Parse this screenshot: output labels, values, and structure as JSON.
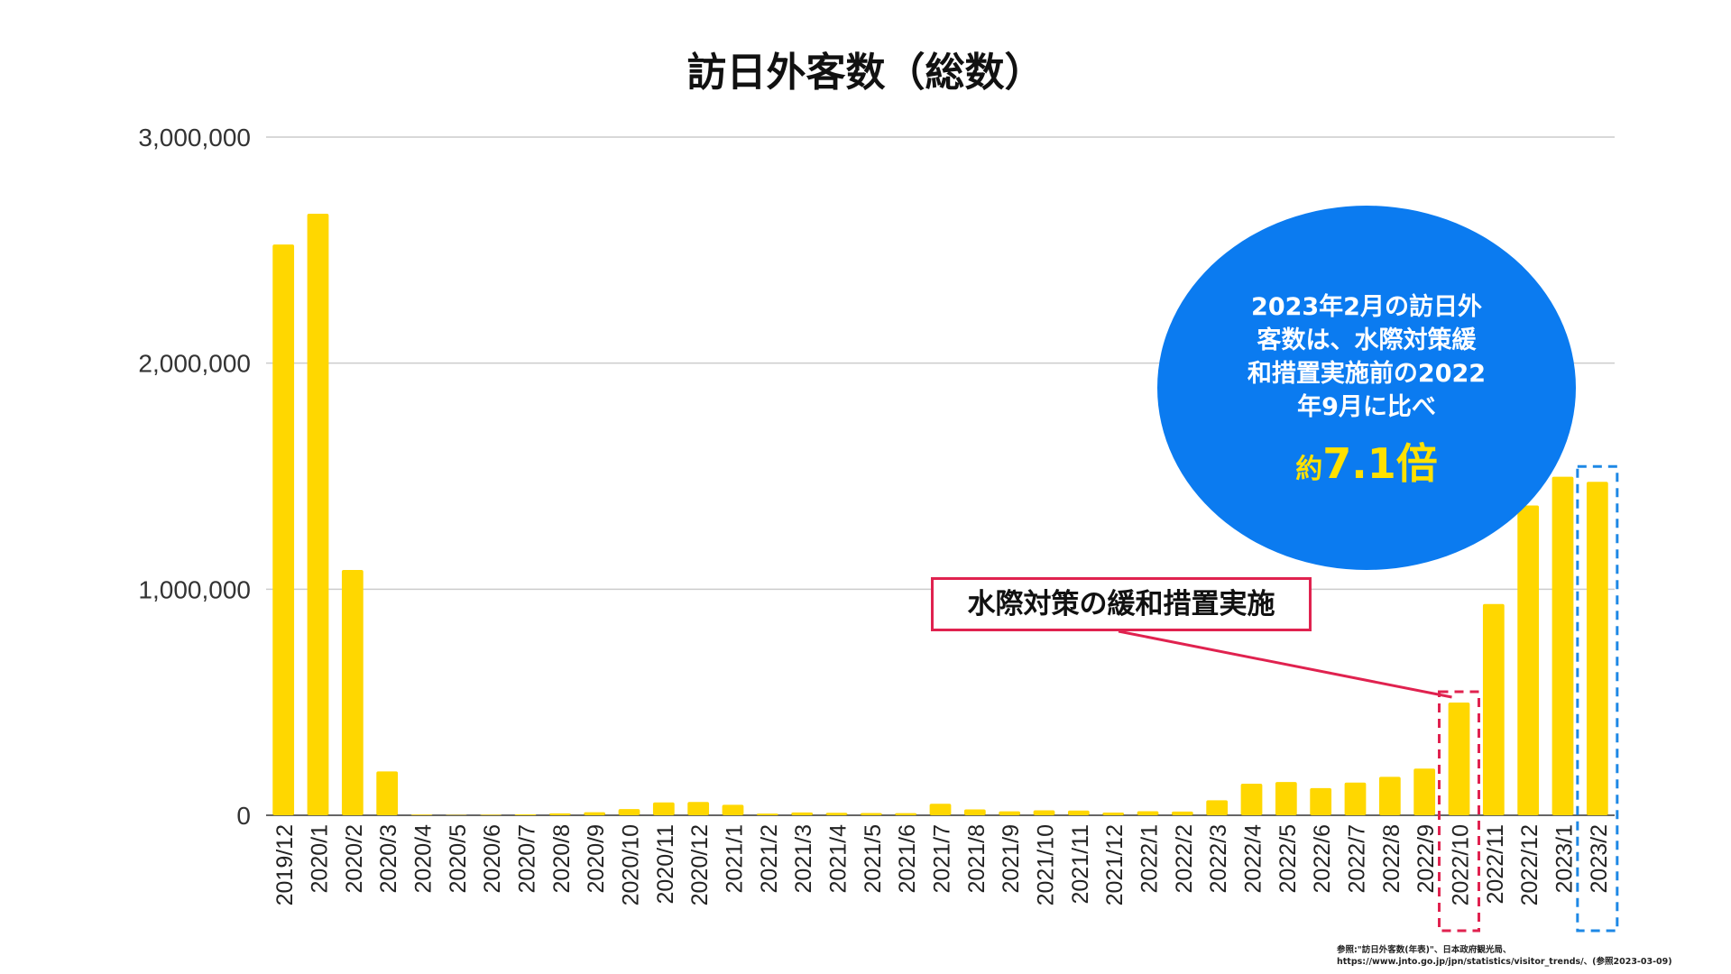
{
  "chart_data": {
    "type": "bar",
    "title": "訪日外客数（総数）",
    "xlabel": "",
    "ylabel": "",
    "ylim": [
      0,
      3000000
    ],
    "yticks": [
      0,
      1000000,
      2000000,
      3000000
    ],
    "ytick_labels": [
      "0",
      "1,000,000",
      "2,000,000",
      "3,000,000"
    ],
    "grid": true,
    "categories": [
      "2019/12",
      "2020/1",
      "2020/2",
      "2020/3",
      "2020/4",
      "2020/5",
      "2020/6",
      "2020/7",
      "2020/8",
      "2020/9",
      "2020/10",
      "2020/11",
      "2020/12",
      "2021/1",
      "2021/2",
      "2021/3",
      "2021/4",
      "2021/5",
      "2021/6",
      "2021/7",
      "2021/8",
      "2021/9",
      "2021/10",
      "2021/11",
      "2021/12",
      "2022/1",
      "2022/2",
      "2022/3",
      "2022/4",
      "2022/5",
      "2022/6",
      "2022/7",
      "2022/8",
      "2022/9",
      "2022/10",
      "2022/11",
      "2022/12",
      "2023/1",
      "2023/2"
    ],
    "values": [
      2525000,
      2661000,
      1085000,
      194000,
      2900,
      1700,
      2600,
      3800,
      8700,
      13700,
      27400,
      56700,
      58700,
      46500,
      7400,
      12300,
      10900,
      10000,
      9300,
      51100,
      25900,
      17700,
      22100,
      20700,
      12100,
      17800,
      16700,
      66100,
      139500,
      147000,
      120400,
      144500,
      169900,
      206600,
      498600,
      934500,
      1370100,
      1497300,
      1475300
    ]
  },
  "colors": {
    "bar": "#ffd700",
    "bubble": "#0b7bf0",
    "bubble_text": "#ffffff",
    "emphasis": "#ffe100",
    "callout_border": "#e0224f",
    "highlight_red": "#e0224f",
    "highlight_blue": "#1e88e5",
    "grid": "#cccccc"
  },
  "bubble": {
    "text": "2023年2月の訪日外\n客数は、水際対策緩\n和措置実施前の2022\n年9月に比べ",
    "emphasis_prefix": "約",
    "emphasis_value": "7.1倍"
  },
  "callout": {
    "text": "水際対策の緩和措置実施",
    "target_category": "2022/10"
  },
  "highlight_categories": {
    "red": "2022/10",
    "blue": "2023/2"
  },
  "source": {
    "line1": "参照:\"訪日外客数(年表)\"、日本政府観光局、",
    "line2": "https://www.jnto.go.jp/jpn/statistics/visitor_trends/、(参照2023-03-09)"
  }
}
